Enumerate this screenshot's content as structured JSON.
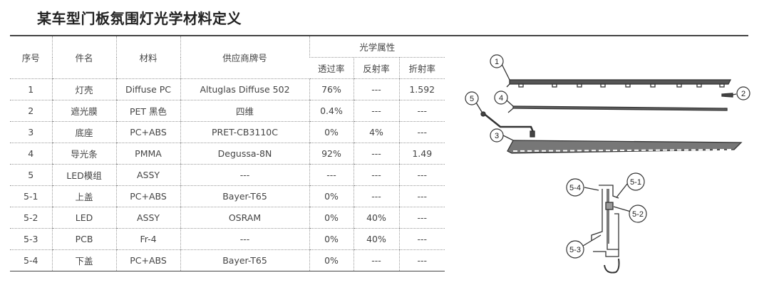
{
  "title": "某车型门板氛围灯光学材料定义",
  "table": {
    "headers": {
      "no": "序号",
      "part": "件名",
      "material": "材料",
      "supplier": "供应商牌号",
      "optical": "光学属性",
      "trans": "透过率",
      "refl": "反射率",
      "refr": "折射率"
    },
    "rows": [
      [
        "1",
        "灯壳",
        "Diffuse PC",
        "Altuglas Diffuse 502",
        "76%",
        "---",
        "1.592"
      ],
      [
        "2",
        "遮光膜",
        "PET 黑色",
        "四维",
        "0.4%",
        "---",
        "---"
      ],
      [
        "3",
        "底座",
        "PC+ABS",
        "PRET-CB3110C",
        "0%",
        "4%",
        "---"
      ],
      [
        "4",
        "导光条",
        "PMMA",
        "Degussa-8N",
        "92%",
        "---",
        "1.49"
      ],
      [
        "5",
        "LED模组",
        "ASSY",
        "---",
        "---",
        "---",
        "---"
      ],
      [
        "5-1",
        "上盖",
        "PC+ABS",
        "Bayer-T65",
        "0%",
        "---",
        "---"
      ],
      [
        "5-2",
        "LED",
        "ASSY",
        "OSRAM",
        "0%",
        "40%",
        "---"
      ],
      [
        "5-3",
        "PCB",
        "Fr-4",
        "---",
        "0%",
        "40%",
        "---"
      ],
      [
        "5-4",
        "下盖",
        "PC+ABS",
        "Bayer-T65",
        "0%",
        "---",
        "---"
      ]
    ]
  },
  "diagram": {
    "labels": [
      "1",
      "2",
      "3",
      "4",
      "5",
      "5-1",
      "5-2",
      "5-3",
      "5-4"
    ]
  }
}
